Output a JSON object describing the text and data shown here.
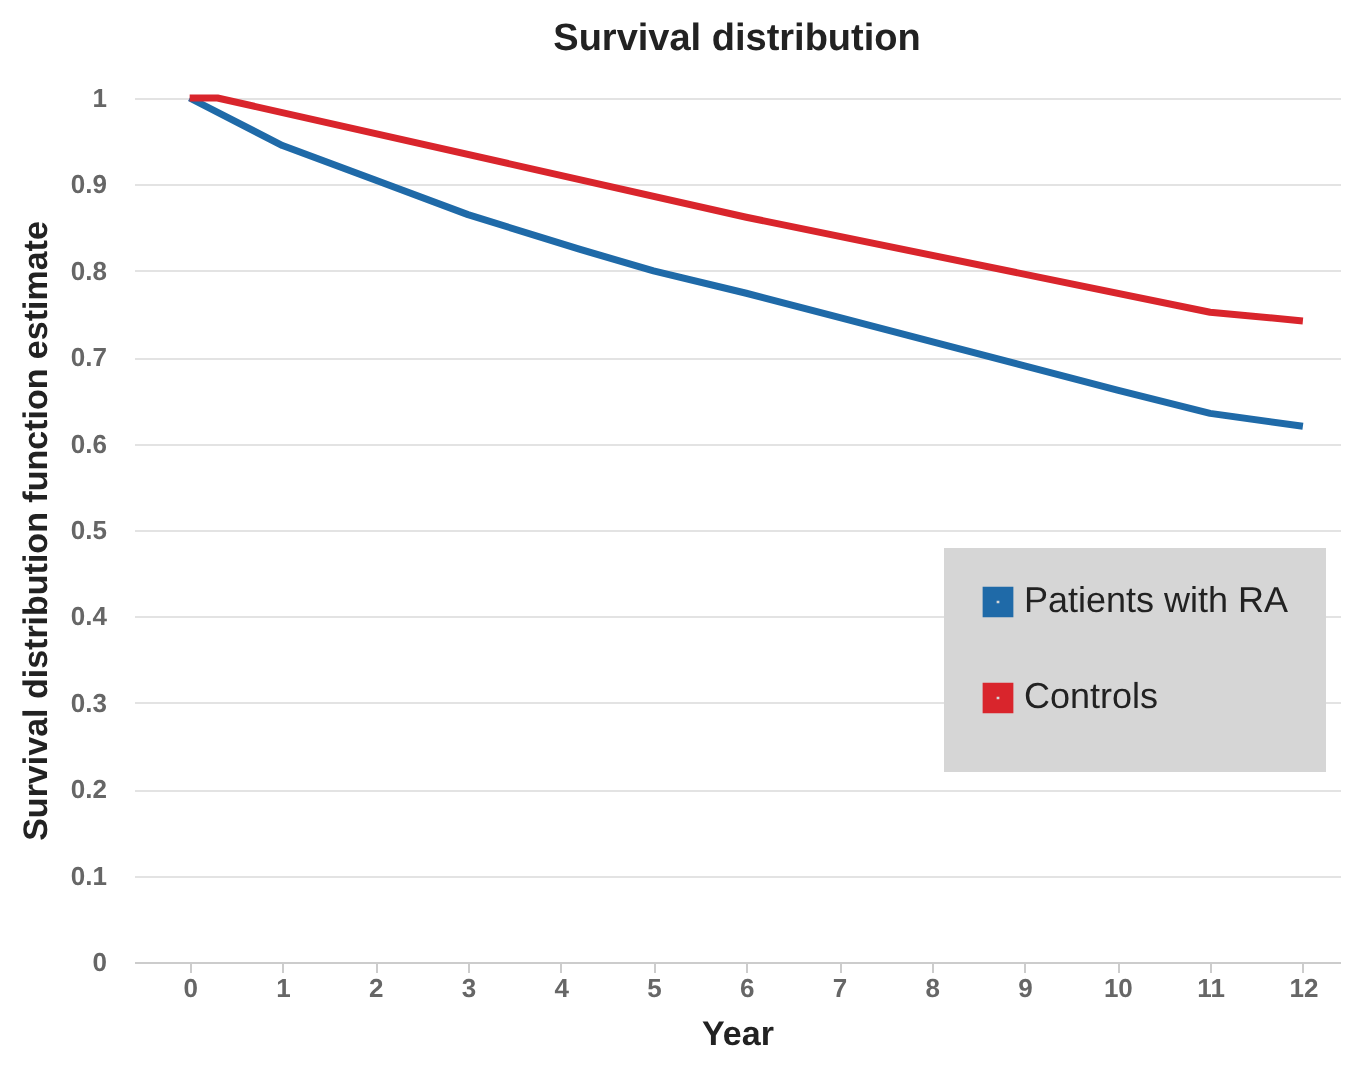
{
  "chart_data": {
    "type": "line",
    "title": "Survival distribution",
    "xlabel": "Year",
    "ylabel": "Survival distribution function estimate",
    "xlim": [
      -0.6,
      12.4
    ],
    "xticks": [
      0,
      1,
      2,
      3,
      4,
      5,
      6,
      7,
      8,
      9,
      10,
      11,
      12
    ],
    "ylim": [
      0,
      1
    ],
    "yticks": [
      0,
      0.1,
      0.2,
      0.3,
      0.4,
      0.5,
      0.6,
      0.7,
      0.8,
      0.9,
      1
    ],
    "grid": "y",
    "legend": "bottom right",
    "marker": "none",
    "line_style": "solid",
    "series": [
      {
        "name": "Patients with RA",
        "color": "#1f6aa8",
        "x": [
          0,
          1,
          2,
          3,
          4.2,
          5,
          6,
          7,
          8,
          9,
          10,
          11,
          12
        ],
        "values": [
          1,
          0.945,
          0.905,
          0.865,
          0.825,
          0.8,
          0.774,
          0.746,
          0.718,
          0.69,
          0.662,
          0.635,
          0.62
        ]
      },
      {
        "name": "Controls",
        "color": "#d9252c",
        "x": [
          0,
          0.3,
          6,
          11,
          12
        ],
        "values": [
          1,
          1,
          0.862,
          0.752,
          0.742
        ]
      }
    ]
  }
}
